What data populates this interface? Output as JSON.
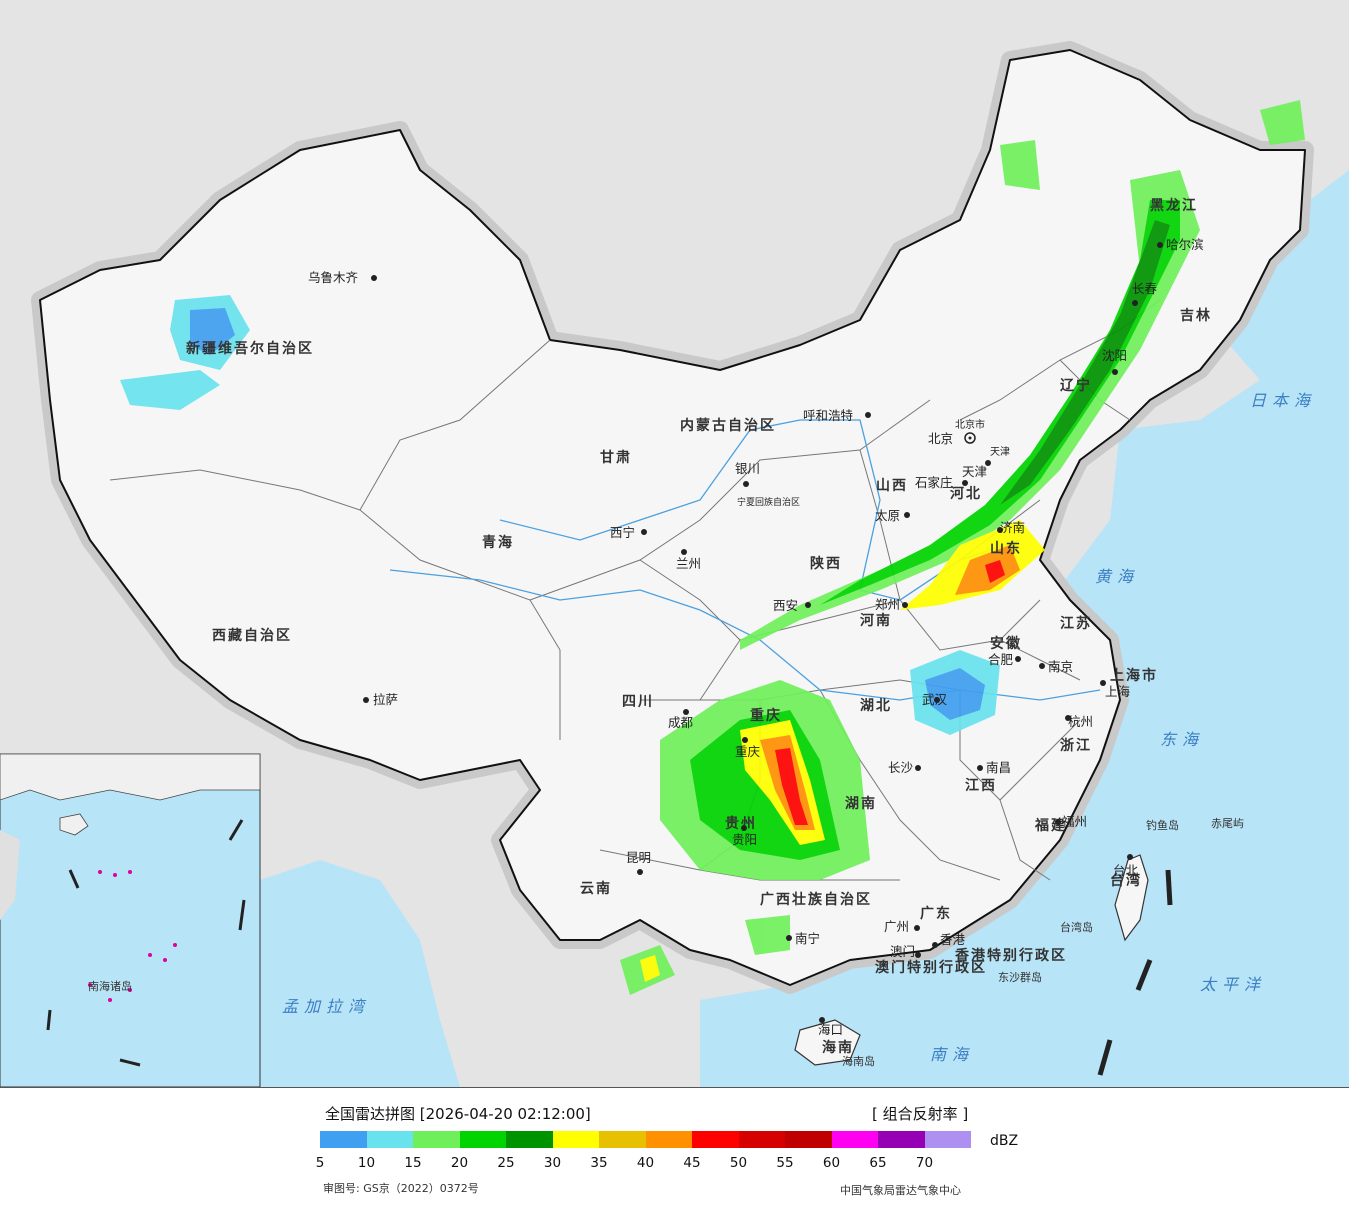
{
  "legend": {
    "title": "全国雷达拼图 [2026-04-20 02:12:00]",
    "product": "[ 组合反射率 ]",
    "unit": "dBZ",
    "approval": "审图号: GS京（2022）0372号",
    "credit": "中国气象局雷达气象中心",
    "ticks": [
      "5",
      "10",
      "15",
      "20",
      "25",
      "30",
      "35",
      "40",
      "45",
      "50",
      "55",
      "60",
      "65",
      "70"
    ],
    "colors": [
      "#3f9ff0",
      "#68e3ee",
      "#6ff05a",
      "#00d400",
      "#009300",
      "#ffff00",
      "#e7c000",
      "#ff9000",
      "#ff0000",
      "#d60000",
      "#c00000",
      "#ff00f0",
      "#9600b4",
      "#ad90f0"
    ]
  },
  "provinces": [
    "新疆维吾尔自治区",
    "西藏自治区",
    "青海",
    "甘肃",
    "内蒙古自治区",
    "黑龙江",
    "吉林",
    "辽宁",
    "河北",
    "山西",
    "山东",
    "陕西",
    "河南",
    "宁夏回族自治区",
    "四川",
    "重庆",
    "湖北",
    "安徽",
    "江苏",
    "浙江",
    "上海市",
    "湖南",
    "江西",
    "福建",
    "贵州",
    "云南",
    "广西壮族自治区",
    "广东",
    "海南",
    "台湾",
    "北京市",
    "天津",
    "香港特别行政区",
    "澳门特别行政区"
  ],
  "cities": [
    "乌鲁木齐",
    "拉萨",
    "西宁",
    "兰州",
    "银川",
    "呼和浩特",
    "北京",
    "天津",
    "石家庄",
    "太原",
    "西安",
    "郑州",
    "济南",
    "沈阳",
    "长春",
    "哈尔滨",
    "合肥",
    "南京",
    "上海",
    "杭州",
    "武汉",
    "长沙",
    "南昌",
    "福州",
    "台北",
    "成都",
    "重庆",
    "贵阳",
    "昆明",
    "南宁",
    "广州",
    "香港",
    "澳门",
    "海口"
  ],
  "seas": [
    "日本海",
    "黄海",
    "东海",
    "太平洋",
    "南海",
    "孟加拉湾"
  ],
  "islands": [
    "钓鱼岛",
    "赤尾屿",
    "台湾岛",
    "东沙群岛",
    "海南岛",
    "南海诸岛"
  ]
}
